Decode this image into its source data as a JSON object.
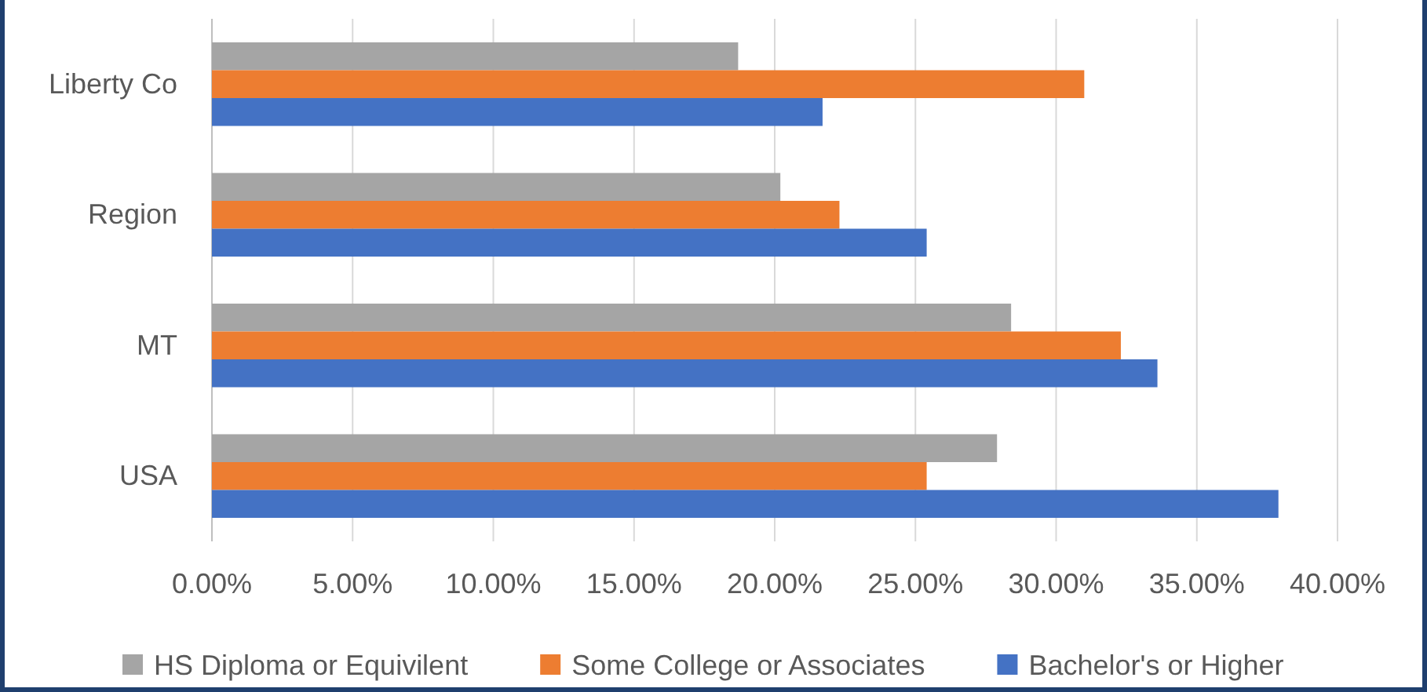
{
  "chart_data": {
    "type": "bar",
    "orientation": "horizontal",
    "categories": [
      "Liberty Co",
      "Region",
      "MT",
      "USA"
    ],
    "series": [
      {
        "name": "HS Diploma or Equivilent",
        "color": "#a5a5a5",
        "values": [
          18.7,
          20.2,
          28.4,
          27.9
        ]
      },
      {
        "name": "Some College or Associates",
        "color": "#ed7d31",
        "values": [
          31.0,
          22.3,
          32.3,
          25.4
        ]
      },
      {
        "name": "Bachelor's or Higher",
        "color": "#4472c4",
        "values": [
          21.7,
          25.4,
          33.6,
          37.9
        ]
      }
    ],
    "xlim": [
      0,
      40
    ],
    "xticks": [
      {
        "value": 0,
        "label": "0.00%"
      },
      {
        "value": 5,
        "label": "5.00%"
      },
      {
        "value": 10,
        "label": "10.00%"
      },
      {
        "value": 15,
        "label": "15.00%"
      },
      {
        "value": 20,
        "label": "20.00%"
      },
      {
        "value": 25,
        "label": "25.00%"
      },
      {
        "value": 30,
        "label": "30.00%"
      },
      {
        "value": 35,
        "label": "35.00%"
      },
      {
        "value": 40,
        "label": "40.00%"
      }
    ],
    "grid": "x",
    "legend": "bottom"
  }
}
